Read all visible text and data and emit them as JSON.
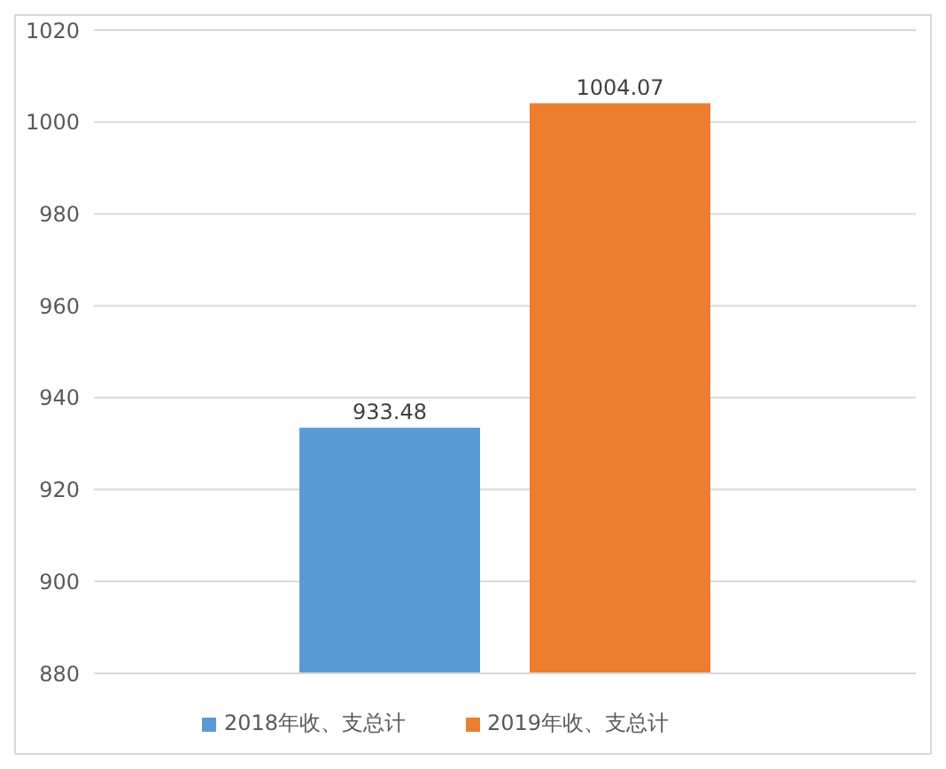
{
  "chart_data": {
    "type": "bar",
    "categories": [
      null
    ],
    "series": [
      {
        "name": "2018年收、支总计",
        "color": "#5b9bd5",
        "values": [
          933.48
        ]
      },
      {
        "name": "2019年收、支总计",
        "color": "#ed7d31",
        "values": [
          1004.07
        ]
      }
    ],
    "ylim": [
      880,
      1020
    ],
    "yticks": [
      880,
      900,
      920,
      940,
      960,
      980,
      1000,
      1020
    ],
    "grid": "y",
    "legend": "bottom",
    "data_labels": true
  }
}
